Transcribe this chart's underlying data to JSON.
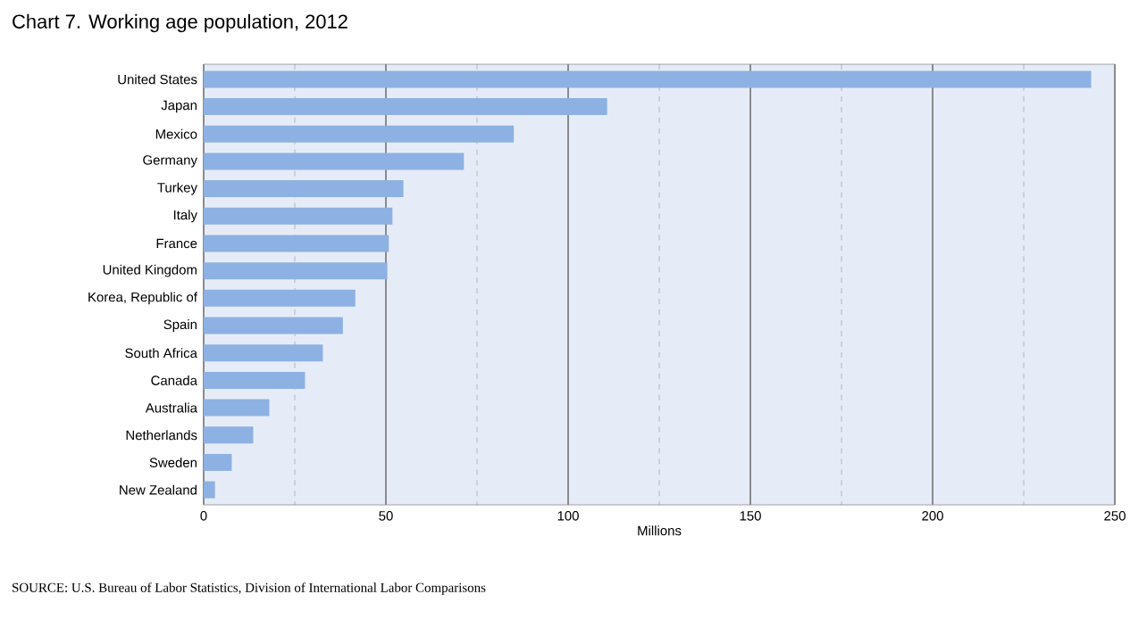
{
  "chart_data": {
    "type": "bar",
    "orientation": "horizontal",
    "title": "Chart 7.  Working age population, 2012",
    "xlabel": "Millions",
    "categories": [
      "United States",
      "Japan",
      "Mexico",
      "Germany",
      "Turkey",
      "Italy",
      "France",
      "United Kingdom",
      "Korea, Republic of",
      "Spain",
      "South Africa",
      "Canada",
      "Australia",
      "Netherlands",
      "Sweden",
      "New Zealand"
    ],
    "values": [
      243.5,
      110.7,
      85.1,
      71.4,
      54.8,
      51.8,
      50.8,
      50.4,
      41.6,
      38.2,
      32.7,
      27.8,
      18.0,
      13.6,
      7.7,
      3.1
    ],
    "color": "#8db1e2",
    "xlim": [
      0,
      250
    ],
    "xticks": [
      0,
      {
        "value": 25,
        "label": null
      },
      50,
      {
        "value": 75,
        "label": null
      },
      100,
      {
        "value": 125,
        "label": null
      },
      150,
      {
        "value": 175,
        "label": null
      },
      200,
      {
        "value": 225,
        "label": null
      },
      250
    ],
    "grid": "x",
    "annotations": [
      "SOURCE: U.S. Bureau of Labor Statistics, Division of International Labor Comparisons"
    ]
  }
}
